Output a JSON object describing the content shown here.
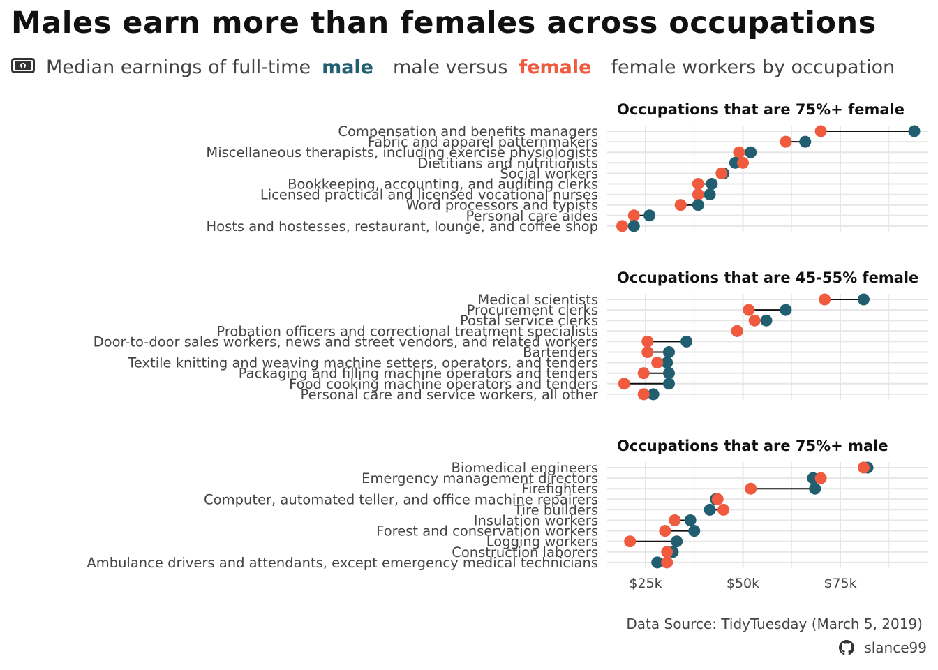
{
  "title": "Males earn more than females across occupations",
  "subtitle": {
    "icon": "money-bill-icon",
    "part1": "Median earnings of full-time",
    "male": "male",
    "part2": "male versus",
    "female": "female",
    "part3": "female workers by occupation"
  },
  "colors": {
    "male": "#215f70",
    "female": "#f05a3e",
    "grid": "#e6e6e6",
    "segment": "#111111"
  },
  "caption": "Data Source: TidyTuesday (March 5, 2019)",
  "author": {
    "icon": "github-icon",
    "handle": "slance99"
  },
  "chart_data": {
    "type": "dumbbell",
    "x_ticks": [
      25000,
      50000,
      75000
    ],
    "x_tick_labels": [
      "$25k",
      "$50k",
      "$75k"
    ],
    "xlim": [
      15000,
      97000
    ],
    "series": [
      {
        "name": "male"
      },
      {
        "name": "female"
      }
    ],
    "panels": [
      {
        "title": "Occupations that are 75%+ female",
        "rows": [
          {
            "label": "Compensation and benefits managers",
            "male": 94000,
            "female": 70000
          },
          {
            "label": "Fabric and apparel patternmakers",
            "male": 66000,
            "female": 61000
          },
          {
            "label": "Miscellaneous therapists, including exercise physiologists",
            "male": 52000,
            "female": 49000
          },
          {
            "label": "Dietitians and nutritionists",
            "male": 48000,
            "female": 50000
          },
          {
            "label": "Social workers",
            "male": 45000,
            "female": 44500
          },
          {
            "label": "Bookkeeping, accounting, and auditing clerks",
            "male": 42000,
            "female": 38500
          },
          {
            "label": "Licensed practical and licensed vocational nurses",
            "male": 41500,
            "female": 38500
          },
          {
            "label": "Word processors and typists",
            "male": 38500,
            "female": 34000
          },
          {
            "label": "Personal care aides",
            "male": 26000,
            "female": 22000
          },
          {
            "label": "Hosts and hostesses, restaurant, lounge, and coffee shop",
            "male": 22000,
            "female": 19000
          }
        ]
      },
      {
        "title": "Occupations that are 45-55% female",
        "rows": [
          {
            "label": "Medical scientists",
            "male": 81000,
            "female": 71000
          },
          {
            "label": "Procurement clerks",
            "male": 61000,
            "female": 51500
          },
          {
            "label": "Postal service clerks",
            "male": 56000,
            "female": 53000
          },
          {
            "label": "Probation officers and correctional treatment specialists",
            "male": 48500,
            "female": 48500
          },
          {
            "label": "Door-to-door sales workers, news and street vendors, and related workers",
            "male": 35500,
            "female": 25500
          },
          {
            "label": "Bartenders",
            "male": 31000,
            "female": 25500
          },
          {
            "label": "Textile knitting and weaving machine setters, operators, and tenders",
            "male": 30500,
            "female": 28000
          },
          {
            "label": "Packaging and filling machine operators and tenders",
            "male": 31000,
            "female": 24500
          },
          {
            "label": "Food cooking machine operators and tenders",
            "male": 31000,
            "female": 19500
          },
          {
            "label": "Personal care and service workers, all other",
            "male": 27000,
            "female": 24500
          }
        ]
      },
      {
        "title": "Occupations that are 75%+ male",
        "rows": [
          {
            "label": "Biomedical engineers",
            "male": 82000,
            "female": 81000
          },
          {
            "label": "Emergency management directors",
            "male": 68000,
            "female": 70000
          },
          {
            "label": "Firefighters",
            "male": 68500,
            "female": 52000
          },
          {
            "label": "Computer, automated teller, and office machine repairers",
            "male": 43000,
            "female": 43500
          },
          {
            "label": "Tire builders",
            "male": 41500,
            "female": 45000
          },
          {
            "label": "Insulation workers",
            "male": 36500,
            "female": 32500
          },
          {
            "label": "Forest and conservation workers",
            "male": 37500,
            "female": 30000
          },
          {
            "label": "Logging workers",
            "male": 33000,
            "female": 21000
          },
          {
            "label": "Construction laborers",
            "male": 32000,
            "female": 30500
          },
          {
            "label": "Ambulance drivers and attendants, except emergency medical technicians",
            "male": 28000,
            "female": 30500
          }
        ]
      }
    ]
  }
}
